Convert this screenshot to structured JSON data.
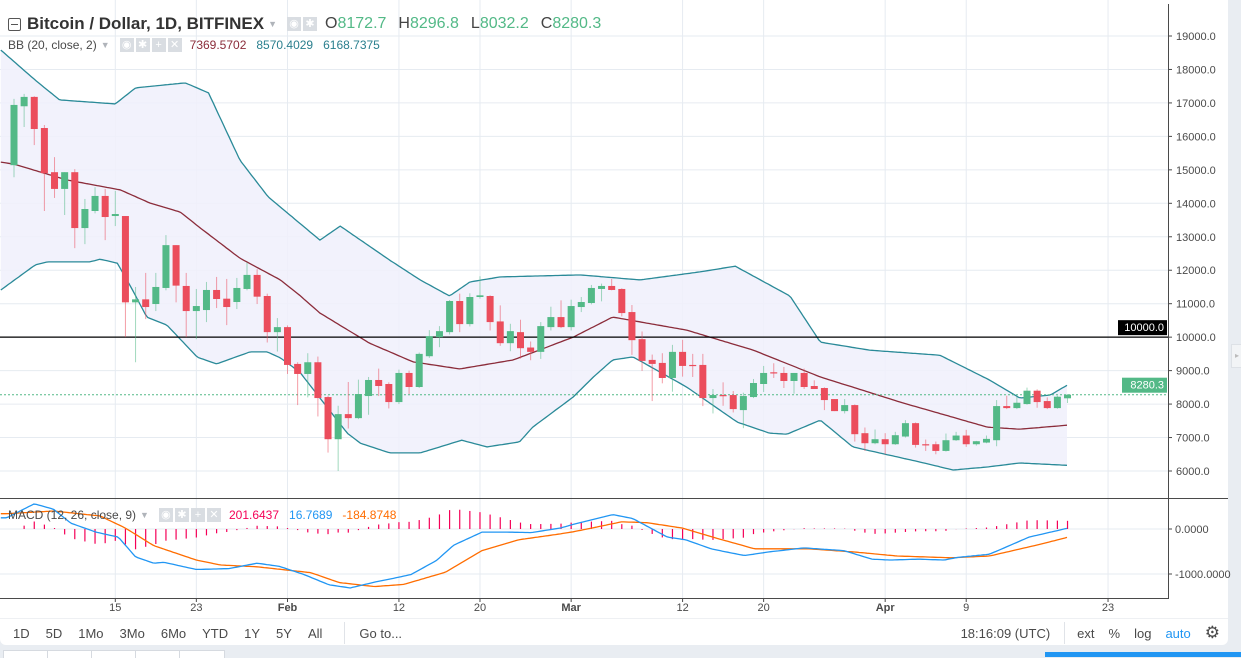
{
  "header": {
    "symbol_title": "Bitcoin / Dollar, 1D, BITFINEX",
    "ohlc": [
      {
        "key": "O",
        "value": "8172.7"
      },
      {
        "key": "H",
        "value": "8296.8"
      },
      {
        "key": "L",
        "value": "8032.2"
      },
      {
        "key": "C",
        "value": "8280.3"
      }
    ]
  },
  "bb_legend": {
    "label": "BB (20, close, 2)",
    "middle": "7369.5702",
    "upper": "8570.4029",
    "lower": "6168.7375"
  },
  "macd_legend": {
    "label": "MACD (12, 26, close, 9)",
    "histogram": "201.6437",
    "macd": "16.7689",
    "signal": "-184.8748"
  },
  "price_axis": {
    "ticks": [
      "19000.0",
      "18000.0",
      "17000.0",
      "16000.0",
      "15000.0",
      "14000.0",
      "13000.0",
      "12000.0",
      "11000.0",
      "10000.0",
      "9000.0",
      "8000.0",
      "7000.0",
      "6000.0"
    ],
    "horizontal_line_label": "10000.0",
    "last_price_label": "8280.3"
  },
  "macd_axis": {
    "ticks": [
      "0.0000",
      "-1000.0000"
    ]
  },
  "time_axis": {
    "ticks": [
      {
        "label": "15",
        "index": 10,
        "bold": false
      },
      {
        "label": "23",
        "index": 18,
        "bold": false
      },
      {
        "label": "Feb",
        "index": 27,
        "bold": true
      },
      {
        "label": "12",
        "index": 38,
        "bold": false
      },
      {
        "label": "20",
        "index": 46,
        "bold": false
      },
      {
        "label": "Mar",
        "index": 55,
        "bold": true
      },
      {
        "label": "12",
        "index": 66,
        "bold": false
      },
      {
        "label": "20",
        "index": 74,
        "bold": false
      },
      {
        "label": "Apr",
        "index": 86,
        "bold": true
      },
      {
        "label": "9",
        "index": 94,
        "bold": false
      },
      {
        "label": "23",
        "index": 108,
        "bold": false
      }
    ]
  },
  "toolbar": {
    "ranges": [
      "1D",
      "5D",
      "1Mo",
      "3Mo",
      "6Mo",
      "YTD",
      "1Y",
      "5Y",
      "All"
    ],
    "goto": "Go to...",
    "clock": "18:16:09 (UTC)",
    "ext": "ext",
    "percent": "%",
    "log": "log",
    "auto": "auto"
  },
  "colors": {
    "up": "#53b987",
    "down": "#eb4d5c",
    "bb_band": "#2a8a98",
    "bb_mid": "#8b2c3a",
    "bb_fill": "#f0f0fc",
    "macd": "#2196f3",
    "signal": "#ff6d00",
    "hist": "#f50057"
  },
  "chart_data": {
    "type": "candlestick",
    "title": "Bitcoin / Dollar, 1D, BITFINEX",
    "price_range": [
      6000,
      19000
    ],
    "horizontal_line": 10000,
    "last_price": 8280.3,
    "candles_ohlc": [
      [
        15140,
        17120,
        14780,
        16940
      ],
      [
        16900,
        17270,
        16280,
        17180
      ],
      [
        17180,
        17200,
        15740,
        16220
      ],
      [
        16250,
        16340,
        13770,
        14900
      ],
      [
        14930,
        15380,
        14160,
        14430
      ],
      [
        14430,
        14930,
        13650,
        14930
      ],
      [
        14930,
        15020,
        12660,
        13260
      ],
      [
        13260,
        14130,
        12780,
        13830
      ],
      [
        13770,
        14480,
        13700,
        14220
      ],
      [
        14220,
        14430,
        12900,
        13590
      ],
      [
        13620,
        14370,
        13320,
        13680
      ],
      [
        13620,
        13620,
        10000,
        11040
      ],
      [
        11040,
        11500,
        9250,
        11130
      ],
      [
        11130,
        11920,
        10540,
        10900
      ],
      [
        10990,
        11920,
        10780,
        11500
      ],
      [
        11470,
        13050,
        11400,
        12750
      ],
      [
        12750,
        12750,
        11040,
        11540
      ],
      [
        11530,
        11920,
        10000,
        10780
      ],
      [
        10780,
        11440,
        9940,
        10930
      ],
      [
        10810,
        11650,
        10450,
        11410
      ],
      [
        11410,
        11800,
        10870,
        11140
      ],
      [
        11150,
        11740,
        10360,
        10900
      ],
      [
        11050,
        11770,
        10840,
        11470
      ],
      [
        11440,
        12230,
        11400,
        11860
      ],
      [
        11860,
        12030,
        10990,
        11210
      ],
      [
        11230,
        11300,
        9840,
        10150
      ],
      [
        10150,
        10570,
        9570,
        10300
      ],
      [
        10300,
        10350,
        8900,
        9170
      ],
      [
        9200,
        9250,
        7970,
        8900
      ],
      [
        8900,
        9520,
        8200,
        9250
      ],
      [
        9250,
        9420,
        7630,
        8180
      ],
      [
        8210,
        8250,
        6550,
        6950
      ],
      [
        6950,
        7950,
        6000,
        7700
      ],
      [
        7700,
        8660,
        7270,
        7580
      ],
      [
        7580,
        8730,
        7550,
        8300
      ],
      [
        8240,
        8810,
        7680,
        8720
      ],
      [
        8720,
        9060,
        8240,
        8540
      ],
      [
        8600,
        8650,
        7870,
        8060
      ],
      [
        8060,
        9030,
        8000,
        8930
      ],
      [
        8930,
        9000,
        8300,
        8510
      ],
      [
        8510,
        9540,
        8480,
        9500
      ],
      [
        9430,
        10210,
        9380,
        10030
      ],
      [
        10000,
        10330,
        9700,
        10180
      ],
      [
        10150,
        11110,
        10080,
        11080
      ],
      [
        11080,
        11300,
        10150,
        10390
      ],
      [
        10390,
        11310,
        10320,
        11200
      ],
      [
        11200,
        11820,
        11150,
        11250
      ],
      [
        11230,
        11250,
        10200,
        10450
      ],
      [
        10470,
        10950,
        9740,
        9820
      ],
      [
        9820,
        10400,
        9580,
        10180
      ],
      [
        10150,
        10520,
        9360,
        9670
      ],
      [
        9690,
        9870,
        9310,
        9560
      ],
      [
        9560,
        10450,
        9350,
        10330
      ],
      [
        10300,
        10910,
        10200,
        10600
      ],
      [
        10600,
        11100,
        10270,
        10300
      ],
      [
        10300,
        11120,
        10200,
        10930
      ],
      [
        10900,
        11200,
        10750,
        11050
      ],
      [
        11020,
        11560,
        10980,
        11470
      ],
      [
        11440,
        11600,
        11070,
        11530
      ],
      [
        11530,
        11740,
        11400,
        11410
      ],
      [
        11440,
        11460,
        10620,
        10720
      ],
      [
        10750,
        10960,
        9470,
        9910
      ],
      [
        9940,
        10170,
        8990,
        9290
      ],
      [
        9320,
        9480,
        8090,
        9200
      ],
      [
        9230,
        9520,
        8620,
        8780
      ],
      [
        8780,
        9770,
        8370,
        9560
      ],
      [
        9560,
        9920,
        8820,
        9140
      ],
      [
        9170,
        9500,
        8810,
        9150
      ],
      [
        9170,
        9500,
        7940,
        8180
      ],
      [
        8180,
        8450,
        7720,
        8270
      ],
      [
        8270,
        8650,
        7950,
        8260
      ],
      [
        8270,
        8390,
        7750,
        7850
      ],
      [
        7820,
        8340,
        7280,
        8240
      ],
      [
        8210,
        8750,
        8180,
        8630
      ],
      [
        8600,
        9140,
        8360,
        8930
      ],
      [
        8950,
        9220,
        8780,
        8930
      ],
      [
        8930,
        9110,
        8480,
        8690
      ],
      [
        8690,
        8930,
        8310,
        8930
      ],
      [
        8930,
        9060,
        8450,
        8510
      ],
      [
        8540,
        8710,
        8450,
        8450
      ],
      [
        8480,
        8500,
        7820,
        8120
      ],
      [
        8150,
        8150,
        7790,
        7790
      ],
      [
        7790,
        8150,
        7720,
        7970
      ],
      [
        7970,
        7990,
        6880,
        7100
      ],
      [
        7130,
        7300,
        6600,
        6830
      ],
      [
        6830,
        7240,
        6800,
        6950
      ],
      [
        6950,
        7130,
        6500,
        6800
      ],
      [
        6800,
        7170,
        6780,
        7070
      ],
      [
        7030,
        7520,
        7000,
        7430
      ],
      [
        7430,
        7450,
        6700,
        6780
      ],
      [
        6800,
        6940,
        6600,
        6790
      ],
      [
        6800,
        6880,
        6500,
        6600
      ],
      [
        6600,
        7120,
        6580,
        6920
      ],
      [
        6920,
        7170,
        6900,
        7060
      ],
      [
        7060,
        7230,
        6720,
        6800
      ],
      [
        6800,
        6900,
        6760,
        6890
      ],
      [
        6850,
        7060,
        6830,
        6960
      ],
      [
        6920,
        8120,
        6740,
        7940
      ],
      [
        7940,
        8250,
        7850,
        7880
      ],
      [
        7880,
        8220,
        7850,
        8040
      ],
      [
        8000,
        8490,
        7980,
        8400
      ],
      [
        8400,
        8440,
        7890,
        8060
      ],
      [
        8090,
        8200,
        7850,
        7880
      ],
      [
        7880,
        8250,
        7860,
        8220
      ],
      [
        8172.7,
        8296.8,
        8032.2,
        8280.3
      ]
    ],
    "bollinger": {
      "upper": [
        [
          -1.3,
          18580
        ],
        [
          2.1,
          17680
        ],
        [
          4.5,
          17090
        ],
        [
          10,
          16970
        ],
        [
          12,
          17450
        ],
        [
          16.9,
          17600
        ],
        [
          19.2,
          17300
        ],
        [
          22.3,
          15290
        ],
        [
          25.1,
          14190
        ],
        [
          30.2,
          12900
        ],
        [
          32.2,
          13320
        ],
        [
          37.1,
          12300
        ],
        [
          40.1,
          11710
        ],
        [
          43,
          11230
        ],
        [
          45,
          11650
        ],
        [
          48,
          11800
        ],
        [
          55.9,
          11860
        ],
        [
          61.8,
          11710
        ],
        [
          67.7,
          11950
        ],
        [
          71.2,
          12120
        ],
        [
          76.6,
          11230
        ],
        [
          79.6,
          9850
        ],
        [
          84.5,
          9610
        ],
        [
          91.4,
          9460
        ],
        [
          96.3,
          8720
        ],
        [
          99.3,
          8180
        ],
        [
          102.3,
          8270
        ],
        [
          104,
          8570.4
        ]
      ],
      "middle": [
        [
          -1.3,
          15230
        ],
        [
          0,
          15170
        ],
        [
          5.2,
          14700
        ],
        [
          10.5,
          14400
        ],
        [
          13.4,
          14010
        ],
        [
          16.4,
          13740
        ],
        [
          18.4,
          13260
        ],
        [
          22.3,
          12360
        ],
        [
          26.3,
          11710
        ],
        [
          28.2,
          11250
        ],
        [
          30.2,
          10720
        ],
        [
          35.1,
          9820
        ],
        [
          39.4,
          9260
        ],
        [
          44,
          9050
        ],
        [
          49.3,
          9320
        ],
        [
          55.2,
          10000
        ],
        [
          59.1,
          10600
        ],
        [
          66.4,
          10210
        ],
        [
          73,
          9610
        ],
        [
          79.6,
          8810
        ],
        [
          87.8,
          8030
        ],
        [
          96.1,
          7310
        ],
        [
          99.3,
          7250
        ],
        [
          104,
          7369.6
        ]
      ],
      "lower": [
        [
          -1.3,
          11410
        ],
        [
          2.1,
          12160
        ],
        [
          3.3,
          12250
        ],
        [
          7.5,
          12250
        ],
        [
          8.5,
          12330
        ],
        [
          10.2,
          12210
        ],
        [
          11.7,
          11410
        ],
        [
          13.1,
          10600
        ],
        [
          15.1,
          10360
        ],
        [
          18.1,
          9400
        ],
        [
          20,
          9200
        ],
        [
          23.3,
          9560
        ],
        [
          25,
          9560
        ],
        [
          26.3,
          9380
        ],
        [
          28.2,
          8960
        ],
        [
          32.9,
          7130
        ],
        [
          34.2,
          6830
        ],
        [
          37.1,
          6540
        ],
        [
          40.1,
          6540
        ],
        [
          44.2,
          6920
        ],
        [
          46.7,
          6720
        ],
        [
          49.9,
          6870
        ],
        [
          51.2,
          7310
        ],
        [
          55.2,
          8210
        ],
        [
          57.2,
          8810
        ],
        [
          59.1,
          9320
        ],
        [
          61.1,
          9410
        ],
        [
          66.4,
          8510
        ],
        [
          71.4,
          7460
        ],
        [
          74.6,
          7130
        ],
        [
          76.3,
          7100
        ],
        [
          79.6,
          7520
        ],
        [
          82.8,
          6720
        ],
        [
          89.4,
          6270
        ],
        [
          92.7,
          6030
        ],
        [
          96.1,
          6120
        ],
        [
          99.3,
          6240
        ],
        [
          104,
          6168.7
        ]
      ]
    },
    "macd": {
      "range": [
        -1600,
        650
      ],
      "macd_line": [
        [
          -0.7,
          250
        ],
        [
          2,
          560
        ],
        [
          3.9,
          440
        ],
        [
          5.6,
          130
        ],
        [
          8.1,
          -70
        ],
        [
          10.3,
          -180
        ],
        [
          12,
          -620
        ],
        [
          13.8,
          -760
        ],
        [
          14.8,
          -740
        ],
        [
          18,
          -900
        ],
        [
          21.2,
          -880
        ],
        [
          24,
          -760
        ],
        [
          26.2,
          -830
        ],
        [
          28.6,
          -1010
        ],
        [
          31.1,
          -1240
        ],
        [
          33.2,
          -1310
        ],
        [
          35.6,
          -1180
        ],
        [
          37.4,
          -1100
        ],
        [
          39.2,
          -1010
        ],
        [
          41.7,
          -700
        ],
        [
          43.4,
          -360
        ],
        [
          46.2,
          -70
        ],
        [
          48.7,
          -70
        ],
        [
          51.1,
          -80
        ],
        [
          53.9,
          20
        ],
        [
          55.5,
          120
        ],
        [
          59.1,
          320
        ],
        [
          61.1,
          230
        ],
        [
          64.5,
          -180
        ],
        [
          66.3,
          -240
        ],
        [
          68.8,
          -440
        ],
        [
          72.1,
          -590
        ],
        [
          74.5,
          -510
        ],
        [
          78,
          -420
        ],
        [
          81.9,
          -480
        ],
        [
          84.7,
          -670
        ],
        [
          86.5,
          -690
        ],
        [
          89.3,
          -670
        ],
        [
          91.8,
          -690
        ],
        [
          93.2,
          -630
        ],
        [
          96.3,
          -560
        ],
        [
          100.2,
          -180
        ],
        [
          104,
          16.8
        ]
      ],
      "signal_line": [
        [
          -0.7,
          340
        ],
        [
          3.9,
          400
        ],
        [
          8.5,
          290
        ],
        [
          11,
          20
        ],
        [
          13.8,
          -370
        ],
        [
          18,
          -690
        ],
        [
          20.4,
          -800
        ],
        [
          24,
          -840
        ],
        [
          29.3,
          -970
        ],
        [
          32.1,
          -1190
        ],
        [
          35.6,
          -1280
        ],
        [
          38.5,
          -1230
        ],
        [
          42.6,
          -960
        ],
        [
          46.2,
          -480
        ],
        [
          49.8,
          -240
        ],
        [
          53.9,
          -110
        ],
        [
          55.5,
          -50
        ],
        [
          60,
          160
        ],
        [
          62.5,
          140
        ],
        [
          66,
          20
        ],
        [
          69.6,
          -220
        ],
        [
          73.1,
          -440
        ],
        [
          78.4,
          -440
        ],
        [
          82.9,
          -510
        ],
        [
          87.2,
          -600
        ],
        [
          92.5,
          -640
        ],
        [
          96.3,
          -600
        ],
        [
          101.3,
          -340
        ],
        [
          104,
          -184.9
        ]
      ],
      "histogram_last": 201.6437
    }
  }
}
